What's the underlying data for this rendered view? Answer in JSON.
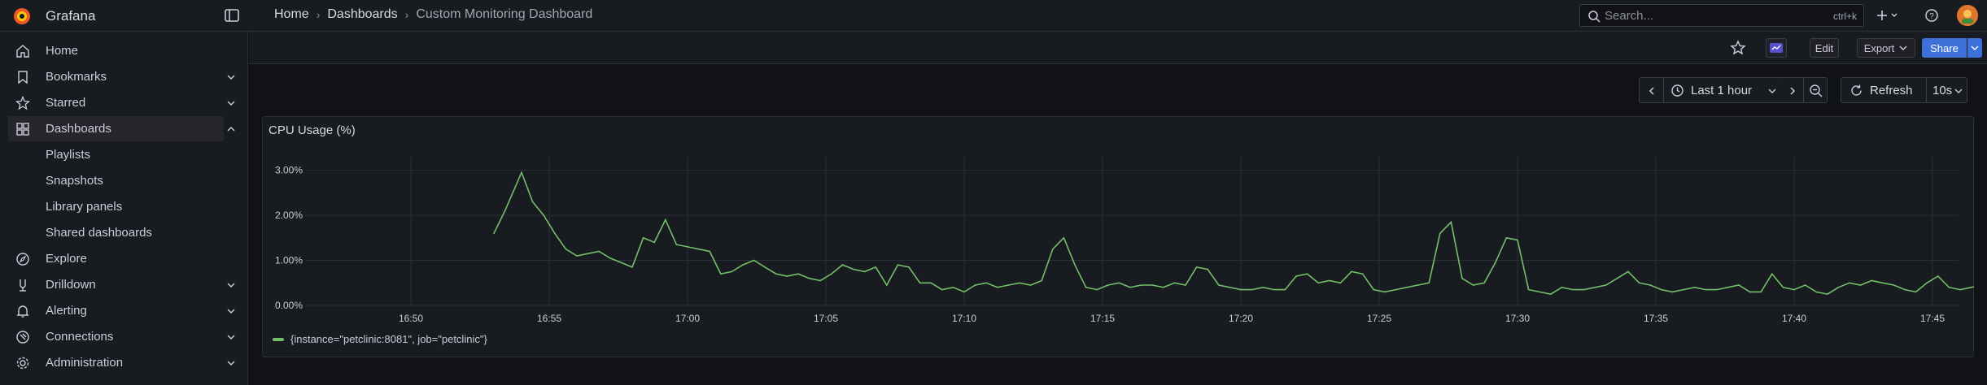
{
  "app": {
    "title": "Grafana"
  },
  "breadcrumb": {
    "home": "Home",
    "dashboards": "Dashboards",
    "current": "Custom Monitoring Dashboard"
  },
  "search": {
    "placeholder": "Search...",
    "shortcut": "ctrl+k"
  },
  "toolbar": {
    "edit_label": "Edit",
    "export_label": "Export",
    "share_label": "Share"
  },
  "sidebar": {
    "items": [
      {
        "label": "Home",
        "icon": "home-icon"
      },
      {
        "label": "Bookmarks",
        "icon": "bookmark-icon"
      },
      {
        "label": "Starred",
        "icon": "star-icon"
      },
      {
        "label": "Dashboards",
        "icon": "apps-icon"
      },
      {
        "label": "Explore",
        "icon": "compass-icon"
      },
      {
        "label": "Drilldown",
        "icon": "drilldown-icon"
      },
      {
        "label": "Alerting",
        "icon": "bell-icon"
      },
      {
        "label": "Connections",
        "icon": "connections-icon"
      },
      {
        "label": "Administration",
        "icon": "gear-icon"
      }
    ],
    "dashboard_sub": [
      "Playlists",
      "Snapshots",
      "Library panels",
      "Shared dashboards"
    ]
  },
  "time": {
    "range_label": "Last 1 hour",
    "refresh_label": "Refresh",
    "interval": "10s"
  },
  "panel": {
    "title": "CPU Usage (%)"
  },
  "chart_data": {
    "type": "line",
    "title": "CPU Usage (%)",
    "xlabel": "",
    "ylabel": "",
    "x_ticks": [
      "16:50",
      "16:55",
      "17:00",
      "17:05",
      "17:10",
      "17:15",
      "17:20",
      "17:25",
      "17:30",
      "17:35",
      "17:40",
      "17:45"
    ],
    "y_ticks": [
      "0.00%",
      "1.00%",
      "2.00%",
      "3.00%"
    ],
    "ylim": [
      0,
      3.3
    ],
    "grid": true,
    "legend_position": "bottom-left",
    "series": [
      {
        "name": "{instance=\"petclinic:8081\", job=\"petclinic\"}",
        "color": "#73bf69",
        "x_minutes": [
          0.0,
          0.4,
          1.0,
          1.4,
          1.8,
          2.2,
          2.6,
          3.0,
          3.4,
          3.8,
          4.2,
          4.6,
          5.0,
          5.4,
          5.8,
          6.2,
          6.6,
          7.0,
          7.4,
          7.8,
          8.2,
          8.6,
          9.0,
          9.4,
          9.8,
          10.2,
          10.6,
          11.0,
          11.4,
          11.8,
          12.2,
          12.6,
          13.0,
          13.4,
          13.8,
          14.2,
          14.6,
          15.0,
          15.4,
          15.8,
          16.2,
          16.6,
          17.0,
          17.4,
          17.8,
          18.2,
          18.6,
          19.0,
          19.4,
          19.8,
          20.2,
          20.6,
          21.0,
          21.4,
          21.8,
          22.2,
          22.6,
          23.0,
          23.4,
          23.8,
          24.2,
          24.6,
          25.0,
          25.4,
          25.8,
          26.2,
          26.6,
          27.0,
          27.4,
          27.8,
          28.2,
          28.6,
          29.0,
          29.4,
          29.8,
          30.2,
          30.6,
          31.0,
          31.4,
          31.8,
          32.2,
          32.6,
          33.0,
          33.4,
          33.8,
          34.2,
          34.6,
          35.0,
          35.4,
          35.8,
          36.2,
          36.6,
          37.0,
          37.4,
          37.8,
          38.2,
          38.6,
          39.0,
          39.4,
          39.8,
          40.2,
          40.6,
          41.0,
          41.4,
          41.8,
          42.2,
          42.6,
          43.0,
          43.4,
          43.8,
          44.2,
          44.6,
          45.0,
          45.4,
          45.8,
          46.2,
          46.6,
          47.0,
          47.4,
          47.8,
          48.2,
          48.6,
          49.0,
          49.4,
          49.8,
          50.2,
          50.6,
          51.0,
          51.4,
          51.8,
          52.2,
          52.6,
          53.0,
          53.4,
          53.8,
          54.2,
          54.6,
          55.0,
          55.4,
          55.8,
          56.2,
          56.6,
          57.0,
          57.4,
          57.8,
          58.2,
          58.6,
          59.0,
          59.4,
          59.8
        ],
        "values": [
          1.6,
          2.1,
          2.95,
          2.3,
          2.0,
          1.6,
          1.25,
          1.1,
          1.15,
          1.2,
          1.05,
          0.95,
          0.85,
          1.5,
          1.4,
          1.9,
          1.35,
          1.3,
          1.25,
          1.2,
          0.7,
          0.75,
          0.9,
          1.0,
          0.85,
          0.7,
          0.65,
          0.7,
          0.6,
          0.55,
          0.7,
          0.9,
          0.8,
          0.75,
          0.85,
          0.45,
          0.9,
          0.85,
          0.5,
          0.5,
          0.35,
          0.4,
          0.3,
          0.45,
          0.5,
          0.4,
          0.45,
          0.5,
          0.45,
          0.55,
          1.25,
          1.5,
          0.9,
          0.4,
          0.35,
          0.45,
          0.5,
          0.4,
          0.45,
          0.45,
          0.4,
          0.5,
          0.45,
          0.85,
          0.8,
          0.45,
          0.4,
          0.35,
          0.35,
          0.4,
          0.35,
          0.35,
          0.65,
          0.7,
          0.5,
          0.55,
          0.5,
          0.75,
          0.7,
          0.35,
          0.3,
          0.35,
          0.4,
          0.45,
          0.5,
          1.6,
          1.85,
          0.6,
          0.45,
          0.5,
          0.95,
          1.5,
          1.45,
          0.35,
          0.3,
          0.25,
          0.4,
          0.35,
          0.35,
          0.4,
          0.45,
          0.6,
          0.75,
          0.5,
          0.45,
          0.35,
          0.3,
          0.35,
          0.4,
          0.35,
          0.35,
          0.4,
          0.45,
          0.3,
          0.3,
          0.7,
          0.4,
          0.35,
          0.45,
          0.3,
          0.25,
          0.4,
          0.5,
          0.45,
          0.55,
          0.5,
          0.45,
          0.35,
          0.3,
          0.5,
          0.65,
          0.4,
          0.35,
          0.4,
          0.45,
          0.4,
          0.35,
          0.45,
          0.4,
          0.5,
          0.45,
          0.35,
          0.7,
          0.65,
          0.35,
          0.7,
          0.75,
          0.5,
          0.4,
          0.45
        ],
        "x_start_label": "16:53"
      }
    ]
  }
}
